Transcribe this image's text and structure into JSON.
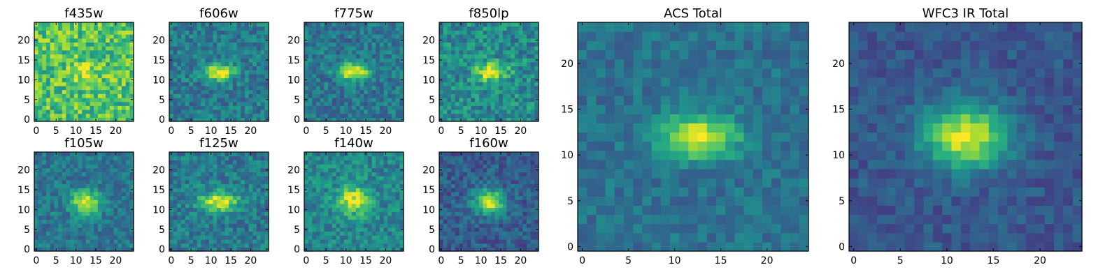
{
  "chart_data": {
    "type": "heatmap",
    "colormap": "viridis",
    "axis_range": [
      0,
      24
    ],
    "grid": false,
    "panels": [
      {
        "title": "f435w",
        "xticks": [
          0,
          5,
          10,
          15,
          20
        ],
        "yticks": [
          0,
          5,
          10,
          15,
          20
        ],
        "source": {
          "cx": 12.5,
          "cy": 12,
          "sx": 2.2,
          "sy": 1.8,
          "amp": 0.2,
          "base": 0.72,
          "noise": 0.42,
          "seed": 11
        }
      },
      {
        "title": "f606w",
        "xticks": [
          0,
          5,
          10,
          15,
          20
        ],
        "yticks": [
          0,
          5,
          10,
          15,
          20
        ],
        "source": {
          "cx": 12,
          "cy": 12,
          "sx": 2.5,
          "sy": 1.4,
          "amp": 0.6,
          "base": 0.42,
          "noise": 0.3,
          "seed": 22
        }
      },
      {
        "title": "f775w",
        "xticks": [
          0,
          5,
          10,
          15,
          20
        ],
        "yticks": [
          0,
          5,
          10,
          15,
          20
        ],
        "source": {
          "cx": 12,
          "cy": 12,
          "sx": 2.8,
          "sy": 1.5,
          "amp": 0.62,
          "base": 0.4,
          "noise": 0.3,
          "seed": 33
        }
      },
      {
        "title": "f850lp",
        "xticks": [
          0,
          5,
          10,
          15,
          20
        ],
        "yticks": [
          0,
          5,
          10,
          15,
          20
        ],
        "source": {
          "cx": 12.5,
          "cy": 12,
          "sx": 2.8,
          "sy": 1.6,
          "amp": 0.5,
          "base": 0.48,
          "noise": 0.36,
          "seed": 44
        }
      },
      {
        "title": "f105w",
        "xticks": [
          0,
          5,
          10,
          15,
          20
        ],
        "yticks": [
          0,
          5,
          10,
          15,
          20
        ],
        "source": {
          "cx": 12.5,
          "cy": 12,
          "sx": 2.6,
          "sy": 2.0,
          "amp": 0.58,
          "base": 0.4,
          "noise": 0.26,
          "seed": 55
        }
      },
      {
        "title": "f125w",
        "xticks": [
          0,
          5,
          10,
          15,
          20
        ],
        "yticks": [
          0,
          5,
          10,
          15,
          20
        ],
        "source": {
          "cx": 12,
          "cy": 12,
          "sx": 3.3,
          "sy": 1.7,
          "amp": 0.55,
          "base": 0.42,
          "noise": 0.3,
          "seed": 66
        }
      },
      {
        "title": "f140w",
        "xticks": [
          0,
          5,
          10,
          15,
          20
        ],
        "yticks": [
          0,
          5,
          10,
          15,
          20
        ],
        "source": {
          "cx": 12,
          "cy": 12.5,
          "sx": 3.0,
          "sy": 2.5,
          "amp": 0.48,
          "base": 0.46,
          "noise": 0.3,
          "seed": 77
        }
      },
      {
        "title": "f160w",
        "xticks": [
          0,
          5,
          10,
          15,
          20
        ],
        "yticks": [
          0,
          5,
          10,
          15,
          20
        ],
        "source": {
          "cx": 12,
          "cy": 12,
          "sx": 2.6,
          "sy": 2.2,
          "amp": 0.65,
          "base": 0.3,
          "noise": 0.26,
          "seed": 88
        }
      },
      {
        "title": "ACS Total",
        "xticks": [
          0,
          5,
          10,
          15,
          20
        ],
        "yticks": [
          0,
          5,
          10,
          15,
          20
        ],
        "source": {
          "cx": 12.5,
          "cy": 12,
          "sx": 3.0,
          "sy": 1.6,
          "amp": 0.62,
          "base": 0.38,
          "noise": 0.2,
          "seed": 99
        }
      },
      {
        "title": "WFC3 IR Total",
        "xticks": [
          0,
          5,
          10,
          15,
          20
        ],
        "yticks": [
          0,
          5,
          10,
          15,
          20
        ],
        "source": {
          "cx": 12,
          "cy": 12,
          "sx": 3.1,
          "sy": 2.4,
          "amp": 0.68,
          "base": 0.28,
          "noise": 0.18,
          "seed": 111
        }
      }
    ]
  }
}
